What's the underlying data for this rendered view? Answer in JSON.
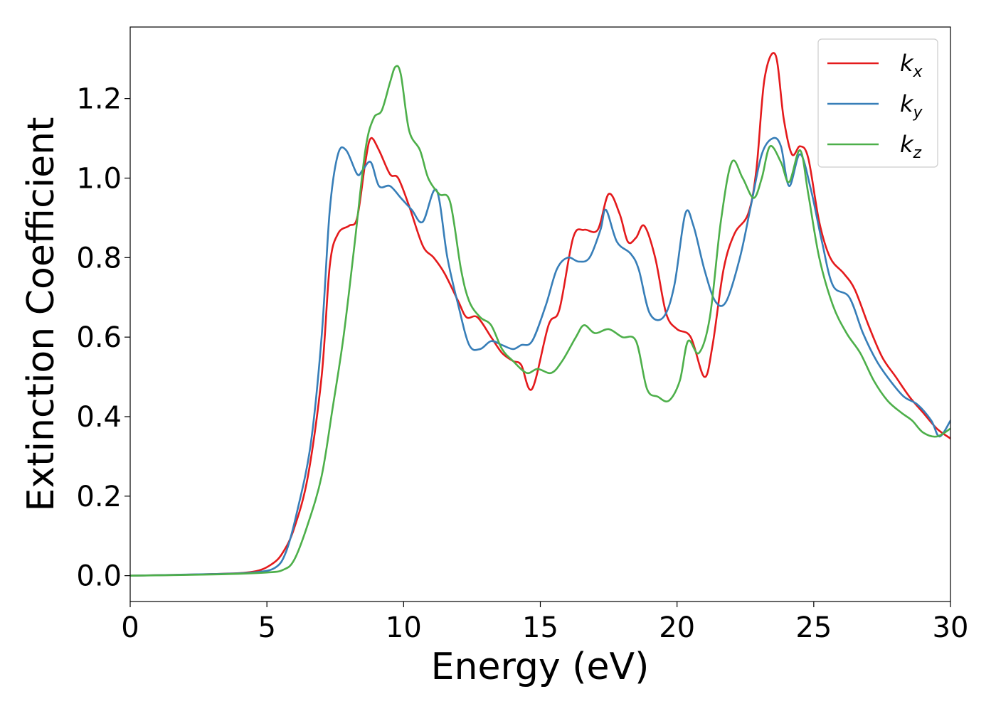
{
  "chart_data": {
    "type": "line",
    "title": "",
    "xlabel": "Energy (eV)",
    "ylabel": "Extinction Coefficient",
    "xlim": [
      0,
      30
    ],
    "ylim": [
      -0.065,
      1.38
    ],
    "xticks": [
      0,
      5,
      10,
      15,
      20,
      25,
      30
    ],
    "xtick_labels": [
      "0",
      "5",
      "10",
      "15",
      "20",
      "25",
      "30"
    ],
    "yticks": [
      0.0,
      0.2,
      0.4,
      0.6,
      0.8,
      1.0,
      1.2
    ],
    "ytick_labels": [
      "0.0",
      "0.2",
      "0.4",
      "0.6",
      "0.8",
      "1.0",
      "1.2"
    ],
    "grid": false,
    "legend_position": "top-right",
    "series": [
      {
        "name": "k_x",
        "legend_main": "k",
        "legend_sub": "x",
        "color": "#e41a1c",
        "points": [
          [
            0,
            0
          ],
          [
            3,
            0.004
          ],
          [
            4.5,
            0.01
          ],
          [
            5.2,
            0.03
          ],
          [
            5.6,
            0.06
          ],
          [
            6,
            0.12
          ],
          [
            6.5,
            0.25
          ],
          [
            7,
            0.5
          ],
          [
            7.3,
            0.78
          ],
          [
            7.6,
            0.86
          ],
          [
            8,
            0.88
          ],
          [
            8.3,
            0.9
          ],
          [
            8.6,
            1.04
          ],
          [
            8.8,
            1.1
          ],
          [
            9.1,
            1.07
          ],
          [
            9.5,
            1.01
          ],
          [
            9.8,
            1.0
          ],
          [
            10.2,
            0.93
          ],
          [
            10.7,
            0.83
          ],
          [
            11.1,
            0.8
          ],
          [
            11.5,
            0.76
          ],
          [
            12,
            0.69
          ],
          [
            12.3,
            0.65
          ],
          [
            12.7,
            0.65
          ],
          [
            13.2,
            0.6
          ],
          [
            13.6,
            0.56
          ],
          [
            14,
            0.54
          ],
          [
            14.3,
            0.53
          ],
          [
            14.7,
            0.47
          ],
          [
            15.3,
            0.63
          ],
          [
            15.7,
            0.67
          ],
          [
            16.2,
            0.85
          ],
          [
            16.6,
            0.87
          ],
          [
            17.1,
            0.87
          ],
          [
            17.5,
            0.96
          ],
          [
            17.9,
            0.91
          ],
          [
            18.2,
            0.84
          ],
          [
            18.5,
            0.85
          ],
          [
            18.8,
            0.88
          ],
          [
            19.2,
            0.8
          ],
          [
            19.6,
            0.66
          ],
          [
            20,
            0.62
          ],
          [
            20.5,
            0.6
          ],
          [
            21,
            0.5
          ],
          [
            21.3,
            0.58
          ],
          [
            21.7,
            0.77
          ],
          [
            22.1,
            0.86
          ],
          [
            22.6,
            0.91
          ],
          [
            22.9,
            1.02
          ],
          [
            23.2,
            1.25
          ],
          [
            23.6,
            1.31
          ],
          [
            23.9,
            1.15
          ],
          [
            24.2,
            1.06
          ],
          [
            24.5,
            1.08
          ],
          [
            24.8,
            1.05
          ],
          [
            25.2,
            0.89
          ],
          [
            25.6,
            0.8
          ],
          [
            26.1,
            0.76
          ],
          [
            26.5,
            0.72
          ],
          [
            27,
            0.63
          ],
          [
            27.5,
            0.55
          ],
          [
            28,
            0.5
          ],
          [
            28.5,
            0.45
          ],
          [
            29,
            0.41
          ],
          [
            29.5,
            0.37
          ],
          [
            30,
            0.345
          ]
        ]
      },
      {
        "name": "k_y",
        "legend_main": "k",
        "legend_sub": "y",
        "color": "#377eb8",
        "points": [
          [
            0,
            0
          ],
          [
            3,
            0.004
          ],
          [
            4.5,
            0.008
          ],
          [
            5.3,
            0.02
          ],
          [
            5.7,
            0.06
          ],
          [
            6.1,
            0.16
          ],
          [
            6.6,
            0.33
          ],
          [
            7,
            0.6
          ],
          [
            7.3,
            0.92
          ],
          [
            7.6,
            1.06
          ],
          [
            7.9,
            1.07
          ],
          [
            8.3,
            1.01
          ],
          [
            8.5,
            1.02
          ],
          [
            8.8,
            1.04
          ],
          [
            9.1,
            0.98
          ],
          [
            9.5,
            0.98
          ],
          [
            9.9,
            0.95
          ],
          [
            10.3,
            0.92
          ],
          [
            10.7,
            0.89
          ],
          [
            11.2,
            0.97
          ],
          [
            11.6,
            0.8
          ],
          [
            12,
            0.68
          ],
          [
            12.4,
            0.58
          ],
          [
            12.8,
            0.57
          ],
          [
            13.2,
            0.59
          ],
          [
            13.6,
            0.58
          ],
          [
            14,
            0.57
          ],
          [
            14.3,
            0.58
          ],
          [
            14.7,
            0.59
          ],
          [
            15.2,
            0.68
          ],
          [
            15.6,
            0.77
          ],
          [
            16,
            0.8
          ],
          [
            16.4,
            0.79
          ],
          [
            16.8,
            0.8
          ],
          [
            17.2,
            0.87
          ],
          [
            17.4,
            0.92
          ],
          [
            17.8,
            0.84
          ],
          [
            18.3,
            0.81
          ],
          [
            18.6,
            0.77
          ],
          [
            19,
            0.66
          ],
          [
            19.5,
            0.65
          ],
          [
            19.9,
            0.73
          ],
          [
            20.3,
            0.91
          ],
          [
            20.6,
            0.88
          ],
          [
            21,
            0.77
          ],
          [
            21.4,
            0.69
          ],
          [
            21.8,
            0.69
          ],
          [
            22.3,
            0.8
          ],
          [
            22.7,
            0.93
          ],
          [
            23.1,
            1.06
          ],
          [
            23.5,
            1.1
          ],
          [
            23.8,
            1.08
          ],
          [
            24.1,
            0.98
          ],
          [
            24.5,
            1.06
          ],
          [
            24.9,
            0.97
          ],
          [
            25.3,
            0.84
          ],
          [
            25.7,
            0.73
          ],
          [
            26.3,
            0.7
          ],
          [
            26.8,
            0.61
          ],
          [
            27.3,
            0.54
          ],
          [
            27.8,
            0.49
          ],
          [
            28.3,
            0.45
          ],
          [
            28.8,
            0.43
          ],
          [
            29.3,
            0.39
          ],
          [
            29.6,
            0.35
          ],
          [
            30,
            0.39
          ]
        ]
      },
      {
        "name": "k_z",
        "legend_main": "k",
        "legend_sub": "z",
        "color": "#4daf4a",
        "points": [
          [
            0,
            0
          ],
          [
            3,
            0.003
          ],
          [
            5,
            0.008
          ],
          [
            5.6,
            0.015
          ],
          [
            6,
            0.04
          ],
          [
            6.5,
            0.13
          ],
          [
            7,
            0.25
          ],
          [
            7.4,
            0.42
          ],
          [
            7.8,
            0.6
          ],
          [
            8.2,
            0.83
          ],
          [
            8.6,
            1.07
          ],
          [
            8.9,
            1.15
          ],
          [
            9.2,
            1.17
          ],
          [
            9.5,
            1.24
          ],
          [
            9.7,
            1.28
          ],
          [
            9.9,
            1.26
          ],
          [
            10.2,
            1.12
          ],
          [
            10.6,
            1.07
          ],
          [
            10.9,
            1.0
          ],
          [
            11.3,
            0.96
          ],
          [
            11.7,
            0.94
          ],
          [
            12.1,
            0.77
          ],
          [
            12.4,
            0.69
          ],
          [
            12.8,
            0.65
          ],
          [
            13.2,
            0.63
          ],
          [
            13.6,
            0.57
          ],
          [
            14,
            0.54
          ],
          [
            14.5,
            0.51
          ],
          [
            14.9,
            0.52
          ],
          [
            15.4,
            0.51
          ],
          [
            15.8,
            0.54
          ],
          [
            16.3,
            0.6
          ],
          [
            16.6,
            0.63
          ],
          [
            17,
            0.61
          ],
          [
            17.5,
            0.62
          ],
          [
            18,
            0.6
          ],
          [
            18.5,
            0.59
          ],
          [
            18.9,
            0.47
          ],
          [
            19.3,
            0.45
          ],
          [
            19.7,
            0.44
          ],
          [
            20.1,
            0.49
          ],
          [
            20.4,
            0.59
          ],
          [
            20.8,
            0.56
          ],
          [
            21.2,
            0.65
          ],
          [
            21.6,
            0.89
          ],
          [
            22,
            1.04
          ],
          [
            22.4,
            1.0
          ],
          [
            22.8,
            0.95
          ],
          [
            23.1,
            1.0
          ],
          [
            23.4,
            1.08
          ],
          [
            23.8,
            1.04
          ],
          [
            24.1,
            0.99
          ],
          [
            24.5,
            1.07
          ],
          [
            24.8,
            0.96
          ],
          [
            25.2,
            0.8
          ],
          [
            25.7,
            0.68
          ],
          [
            26.2,
            0.61
          ],
          [
            26.7,
            0.56
          ],
          [
            27.2,
            0.49
          ],
          [
            27.7,
            0.44
          ],
          [
            28.2,
            0.41
          ],
          [
            28.6,
            0.39
          ],
          [
            29,
            0.36
          ],
          [
            29.5,
            0.35
          ],
          [
            30,
            0.37
          ]
        ]
      }
    ]
  }
}
